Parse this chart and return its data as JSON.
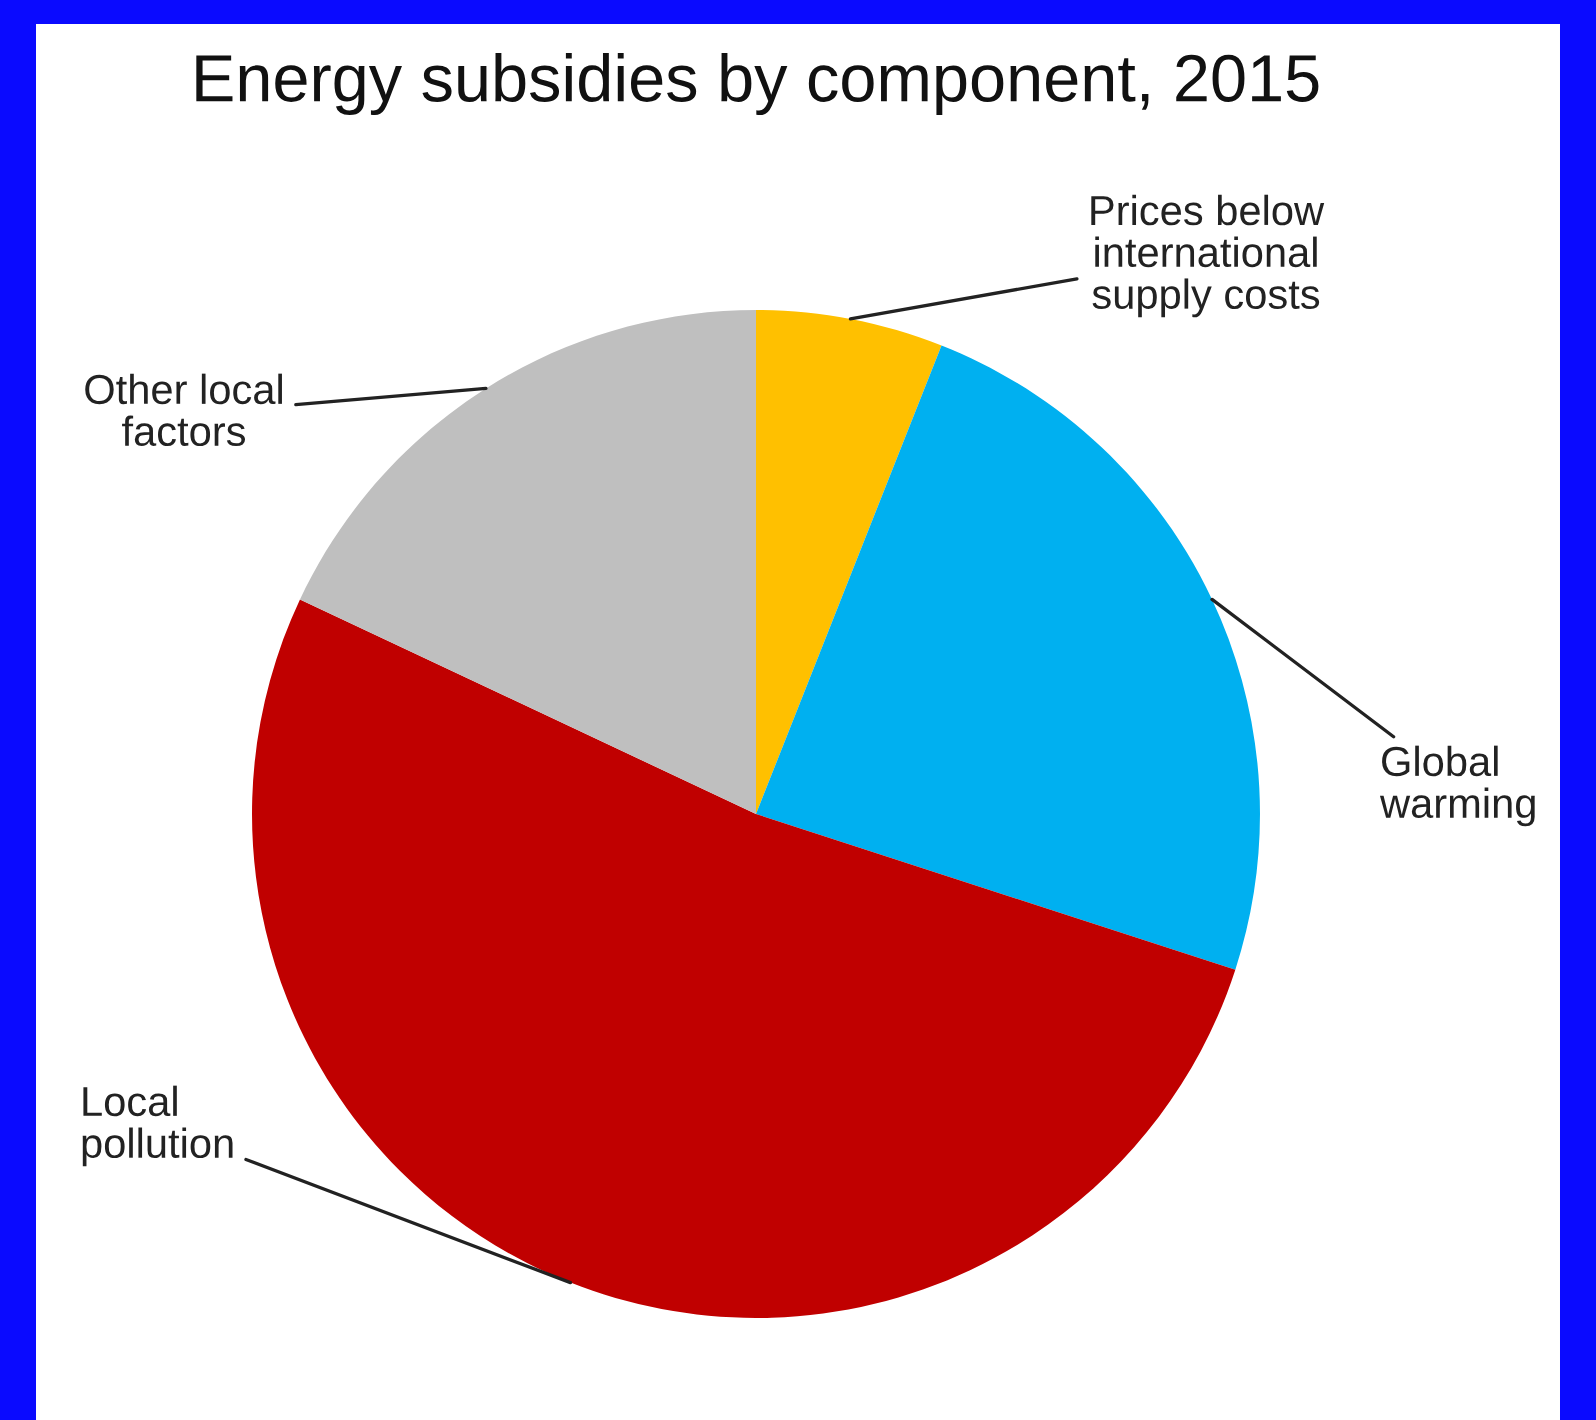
{
  "chart_data": {
    "type": "pie",
    "title": "Energy subsidies by component, 2015",
    "categories": [
      "Prices below\ninternational\nsupply costs",
      "Global\nwarming",
      "Local\npollution",
      "Other local\nfactors"
    ],
    "values": [
      6,
      24,
      52,
      18
    ],
    "colors": [
      "#ffc000",
      "#00b0f0",
      "#c00000",
      "#bfbfbf"
    ],
    "legend": false
  }
}
